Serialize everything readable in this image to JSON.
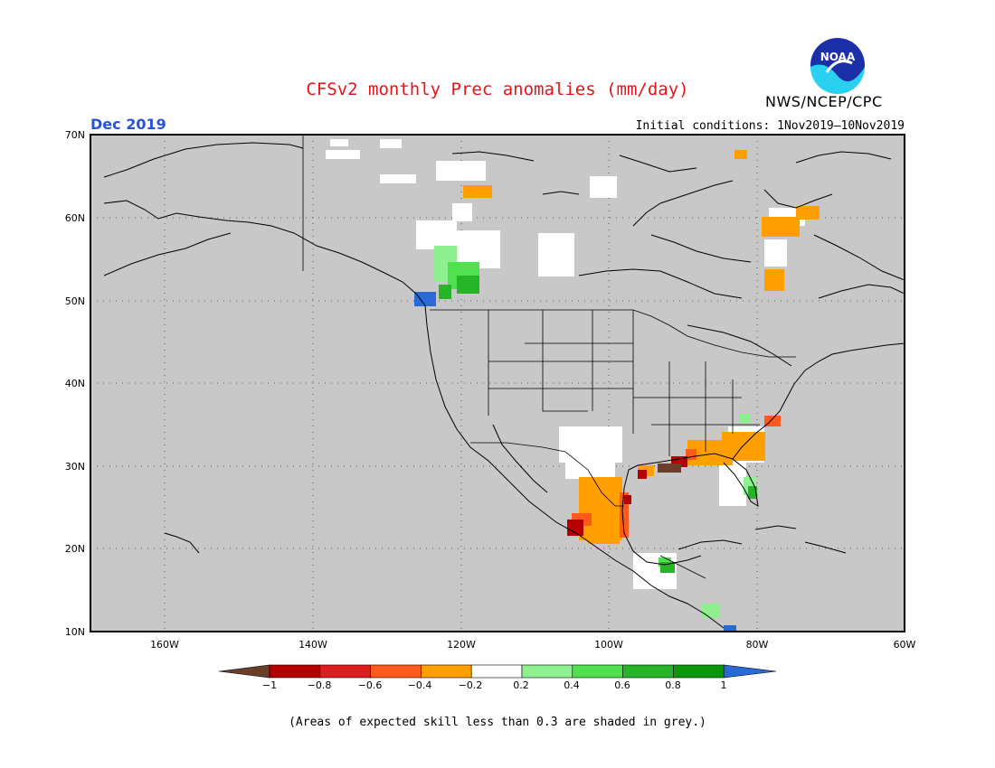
{
  "header": {
    "title": "CFSv2 monthly Prec anomalies (mm/day)",
    "organization": "NWS/NCEP/CPC",
    "logo_text": "NOAA",
    "month": "Dec 2019",
    "initial_conditions": "Initial conditions: 1Nov2019—10Nov2019"
  },
  "map": {
    "lat_labels": [
      "70N",
      "60N",
      "50N",
      "40N",
      "30N",
      "20N",
      "10N"
    ],
    "lon_labels": [
      "160W",
      "140W",
      "120W",
      "100W",
      "80W",
      "60W"
    ],
    "background_color": "#c8c8c8"
  },
  "legend": {
    "ticks": [
      "−1",
      "−0.8",
      "−0.6",
      "−0.4",
      "−0.2",
      "0.2",
      "0.4",
      "0.6",
      "0.8",
      "1"
    ],
    "colors": [
      "#6a3f2a",
      "#b40000",
      "#dc1e1e",
      "#ff5a1e",
      "#ffa000",
      "#ffffff",
      "#8ef08e",
      "#50e050",
      "#28b428",
      "#0c960c",
      "#2a6ad6"
    ]
  },
  "footnote": "(Areas of expected skill less than 0.3 are shaded in grey.)"
}
